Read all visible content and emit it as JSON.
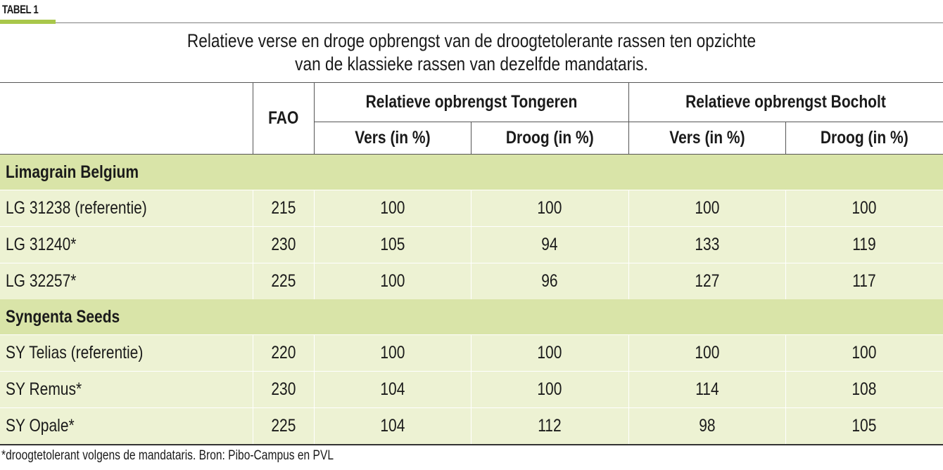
{
  "tag": {
    "label": "TABEL 1",
    "color": "#a9c74a"
  },
  "title": {
    "line1": "Relatieve verse en droge opbrengst van de droogtetolerante rassen ten opzichte",
    "line2": "van de klassieke rassen van dezelfde mandataris."
  },
  "header": {
    "fao": "FAO",
    "group_tongeren": "Relatieve opbrengst Tongeren",
    "group_bocholt": "Relatieve opbrengst Bocholt",
    "vers": "Vers (in %)",
    "droog": "Droog (in %)"
  },
  "groups": [
    {
      "name": "Limagrain Belgium",
      "rows": [
        {
          "ras": "LG 31238 (referentie)",
          "fao": "215",
          "t_vers": "100",
          "t_droog": "100",
          "b_vers": "100",
          "b_droog": "100"
        },
        {
          "ras": "LG 31240*",
          "fao": "230",
          "t_vers": "105",
          "t_droog": "94",
          "b_vers": "133",
          "b_droog": "119"
        },
        {
          "ras": "LG 32257*",
          "fao": "225",
          "t_vers": "100",
          "t_droog": "96",
          "b_vers": "127",
          "b_droog": "117"
        }
      ]
    },
    {
      "name": "Syngenta Seeds",
      "rows": [
        {
          "ras": "SY Telias (referentie)",
          "fao": "220",
          "t_vers": "100",
          "t_droog": "100",
          "b_vers": "100",
          "b_droog": "100"
        },
        {
          "ras": "SY Remus*",
          "fao": "230",
          "t_vers": "104",
          "t_droog": "100",
          "b_vers": "114",
          "b_droog": "108"
        },
        {
          "ras": "SY Opale*",
          "fao": "225",
          "t_vers": "104",
          "t_droog": "112",
          "b_vers": "98",
          "b_droog": "105"
        }
      ]
    }
  ],
  "footnote": "*droogtetolerant volgens de mandataris. Bron: Pibo-Campus en PVL",
  "colors": {
    "group_bg": "#d9e4a8",
    "row_bg": "#edf2d3"
  }
}
